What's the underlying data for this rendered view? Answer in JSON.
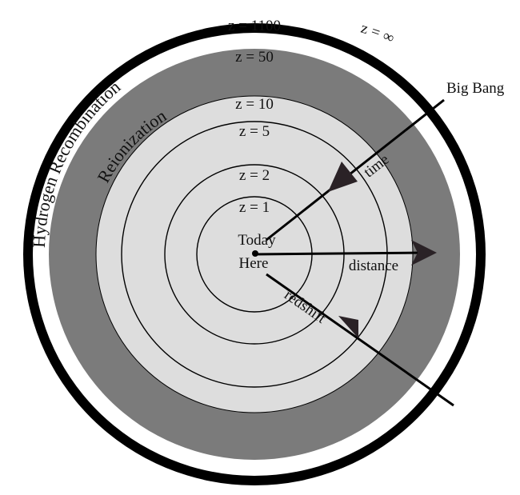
{
  "labels": {
    "z_1100": "z = 1100",
    "z_50": "z = 50",
    "z_10": "z = 10",
    "z_5": "z = 5",
    "z_2": "z = 2",
    "z_1": "z = 1",
    "z_inf": "z = ∞",
    "big_bang": "Big Bang",
    "today": "Today",
    "here": "Here",
    "distance": "distance",
    "time": "time",
    "redshift": "redshift",
    "hydrogen_recombination": "Hydrogen Recombination",
    "reionization": "Reionization"
  },
  "colors": {
    "outer_ring": "#000000",
    "recombination_band": "#ffffff",
    "reionization_band": "#7b7b7b",
    "inner_region": "#dddddd",
    "ring_line": "#000000",
    "arrow_head": "#2a2226"
  }
}
